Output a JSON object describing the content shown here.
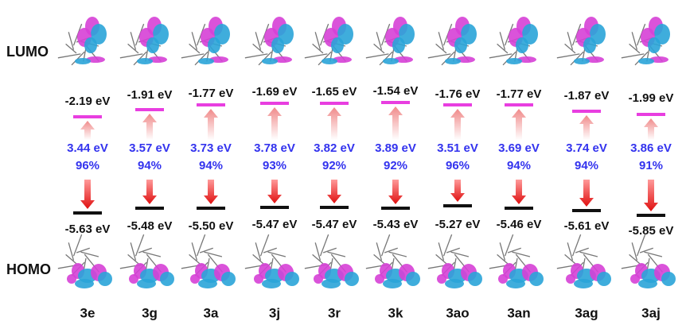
{
  "labels": {
    "lumo": "LUMO",
    "homo": "HOMO"
  },
  "columns": [
    {
      "name": "3e",
      "lumo": "-2.19 eV",
      "homo": "-5.63 eV",
      "gap": "3.44 eV",
      "percent": "96%"
    },
    {
      "name": "3g",
      "lumo": "-1.91 eV",
      "homo": "-5.48 eV",
      "gap": "3.57 eV",
      "percent": "94%"
    },
    {
      "name": "3a",
      "lumo": "-1.77 eV",
      "homo": "-5.50 eV",
      "gap": "3.73 eV",
      "percent": "94%"
    },
    {
      "name": "3j",
      "lumo": "-1.69 eV",
      "homo": "-5.47 eV",
      "gap": "3.78 eV",
      "percent": "93%"
    },
    {
      "name": "3r",
      "lumo": "-1.65 eV",
      "homo": "-5.47 eV",
      "gap": "3.82 eV",
      "percent": "92%"
    },
    {
      "name": "3k",
      "lumo": "-1.54 eV",
      "homo": "-5.43 eV",
      "gap": "3.89 eV",
      "percent": "92%"
    },
    {
      "name": "3ao",
      "lumo": "-1.76 eV",
      "homo": "-5.27 eV",
      "gap": "3.51 eV",
      "percent": "96%"
    },
    {
      "name": "3an",
      "lumo": "-1.77 eV",
      "homo": "-5.46 eV",
      "gap": "3.69 eV",
      "percent": "94%"
    },
    {
      "name": "3ag",
      "lumo": "-1.87 eV",
      "homo": "-5.61 eV",
      "gap": "3.74 eV",
      "percent": "94%"
    },
    {
      "name": "3aj",
      "lumo": "-1.99 eV",
      "homo": "-5.85 eV",
      "gap": "3.86 eV",
      "percent": "91%"
    }
  ]
}
